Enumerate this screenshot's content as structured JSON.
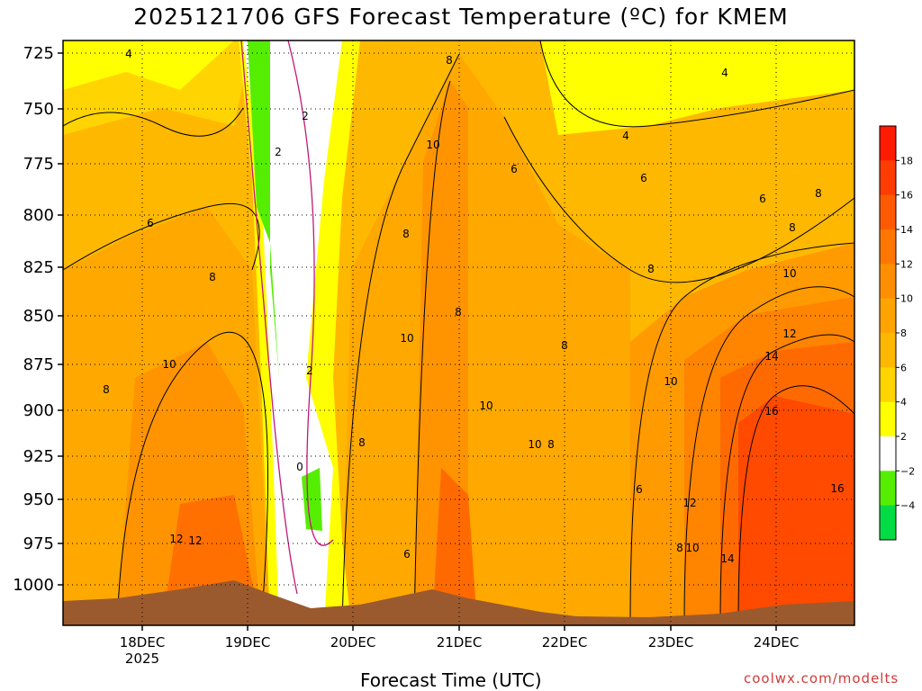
{
  "title": "2025121706 GFS Forecast Temperature (ºC) for KMEM",
  "credit": "coolwx.com/modelts",
  "chart_data": {
    "type": "heatmap",
    "title": "2025121706 GFS Forecast Temperature (ºC) for KMEM",
    "xlabel": "Forecast Time (UTC)",
    "ylabel": "",
    "y_ticks": [
      "725",
      "750",
      "775",
      "800",
      "825",
      "850",
      "875",
      "900",
      "925",
      "950",
      "975",
      "1000"
    ],
    "x_ticks": [
      {
        "label": "18DEC",
        "sub": "2025"
      },
      {
        "label": "19DEC",
        "sub": ""
      },
      {
        "label": "20DEC",
        "sub": ""
      },
      {
        "label": "21DEC",
        "sub": ""
      },
      {
        "label": "22DEC",
        "sub": ""
      },
      {
        "label": "23DEC",
        "sub": ""
      },
      {
        "label": "24DEC",
        "sub": ""
      }
    ],
    "colorbar": {
      "labels": [
        "18",
        "16",
        "14",
        "12",
        "10",
        "8",
        "6",
        "4",
        "2",
        "−2",
        "−4"
      ],
      "colors": [
        "#ff1a00",
        "#ff3d00",
        "#ff5a00",
        "#ff7700",
        "#ff8f00",
        "#ffa400",
        "#ffb800",
        "#ffd400",
        "#ffff00",
        "#ffffff",
        "#55ee00",
        "#00dd44"
      ]
    },
    "contour_labels": [
      "4",
      "4",
      "4",
      "2",
      "2",
      "2",
      "0",
      "6",
      "6",
      "6",
      "6",
      "6",
      "6",
      "8",
      "8",
      "8",
      "8",
      "8",
      "8",
      "8",
      "8",
      "8",
      "8",
      "8",
      "8",
      "10",
      "10",
      "10",
      "10",
      "10",
      "10",
      "10",
      "10",
      "12",
      "12",
      "12",
      "12",
      "14",
      "14",
      "16",
      "16"
    ],
    "grid": true
  }
}
